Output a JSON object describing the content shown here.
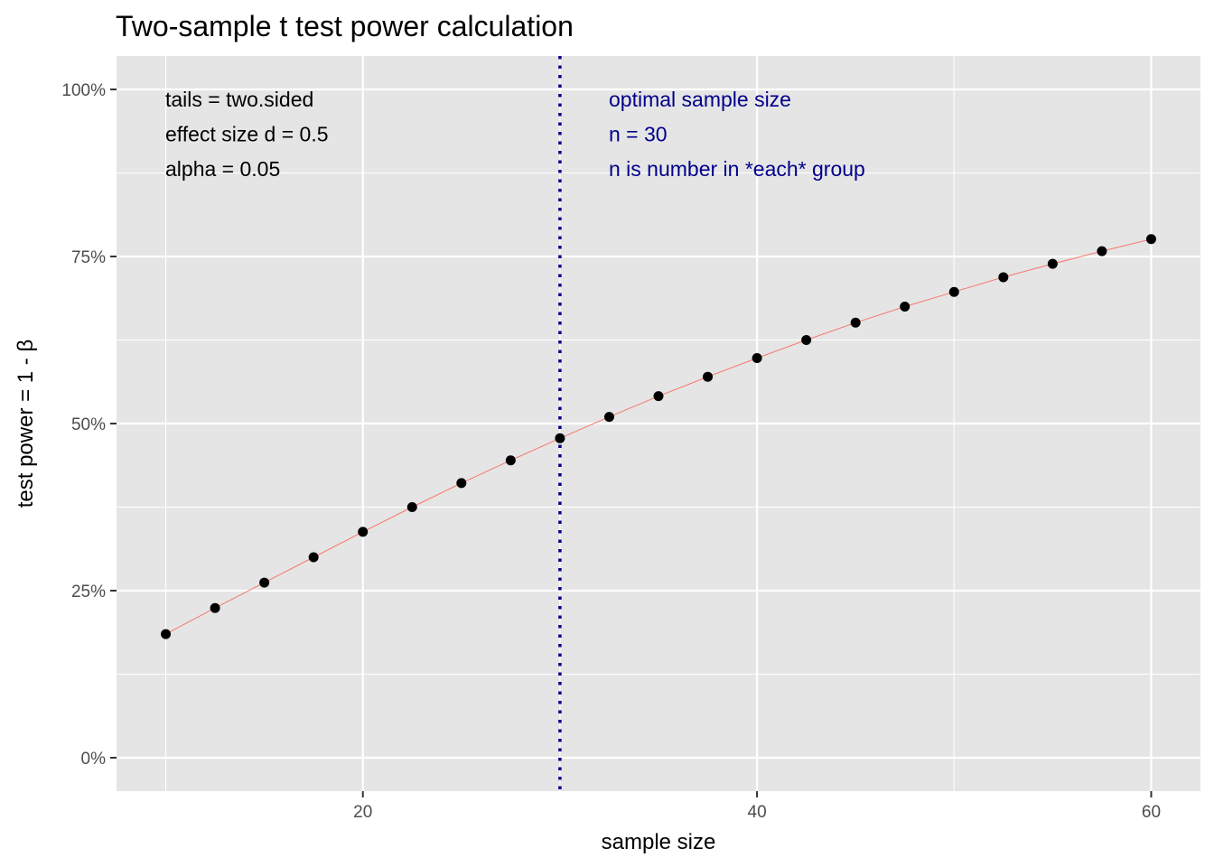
{
  "chart_data": {
    "type": "scatter",
    "title": "Two-sample t test power calculation",
    "xlabel": "sample size",
    "ylabel": "test power = 1 - β",
    "xlim": [
      7.5,
      62.5
    ],
    "ylim": [
      -0.05,
      1.05
    ],
    "x_ticks": [
      20,
      40,
      60
    ],
    "x_tick_labels": [
      "20",
      "40",
      "60"
    ],
    "y_ticks": [
      0,
      0.25,
      0.5,
      0.75,
      1.0
    ],
    "y_tick_labels": [
      "0%",
      "25%",
      "50%",
      "75%",
      "100%"
    ],
    "grid": true,
    "points": {
      "x": [
        10,
        12.5,
        15,
        17.5,
        20,
        22.5,
        25,
        27.5,
        30,
        32.5,
        35,
        37.5,
        40,
        42.5,
        45,
        47.5,
        50,
        52.5,
        55,
        57.5,
        60
      ],
      "y": [
        0.185,
        0.224,
        0.262,
        0.3,
        0.338,
        0.375,
        0.411,
        0.445,
        0.478,
        0.51,
        0.541,
        0.57,
        0.598,
        0.625,
        0.651,
        0.675,
        0.697,
        0.719,
        0.739,
        0.758,
        0.776
      ]
    },
    "line_color": "#F8766D",
    "point_color": "#000000",
    "vline": {
      "x": 30,
      "color": "#00008B",
      "style": "dotted"
    },
    "left_annotation": [
      "tails = two.sided",
      "effect size d = 0.5",
      "alpha = 0.05"
    ],
    "right_annotation": [
      "optimal sample size",
      "n = 30",
      "n is number in *each* group"
    ],
    "right_annotation_color": "#00008B",
    "panel_color": "#E5E5E5",
    "grid_color": "#FFFFFF"
  }
}
